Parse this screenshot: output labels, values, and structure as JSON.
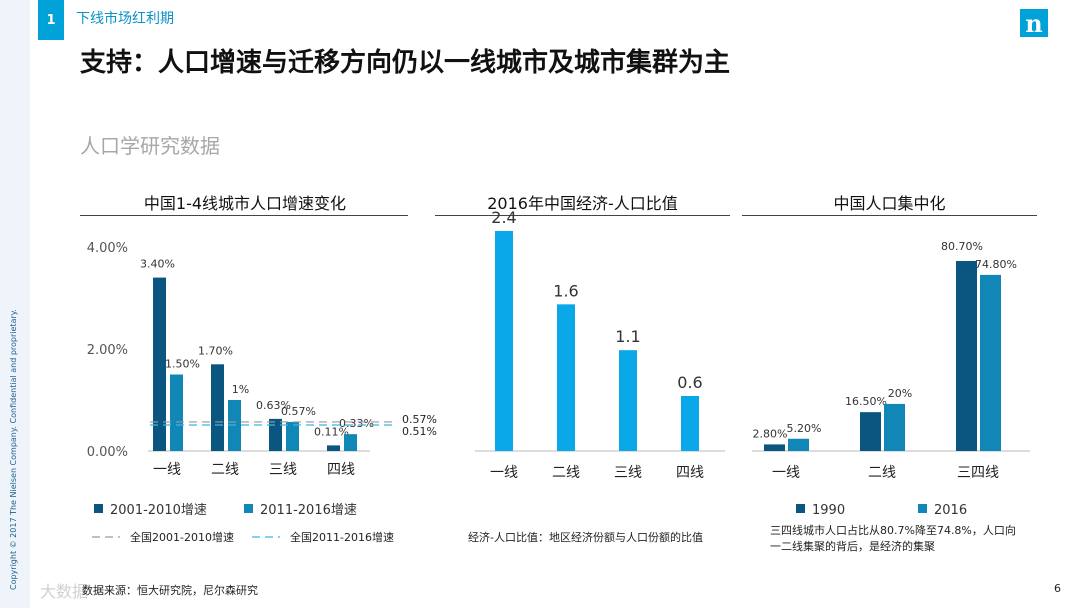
{
  "page": {
    "section_number": "1",
    "section_label": "下线市场红利期",
    "logo_letter": "n",
    "title": "支持：人口增速与迁移方向仍以一线城市及城市集群为主",
    "subtitle": "人口学研究数据",
    "copyright": "Copyright © 2017 The Nielsen Company. Confidential and proprietary.",
    "source": "数据来源：恒大研究院，尼尔森研究",
    "watermark": "大数据",
    "page_number": "6"
  },
  "colors": {
    "dark_blue": "#0b5680",
    "mid_blue": "#1187b8",
    "bright_blue": "#0aa8e8",
    "accent": "#00a2d8"
  },
  "chart_data": [
    {
      "type": "bar",
      "title": "中国1-4线城市人口增速变化",
      "categories": [
        "一线",
        "二线",
        "三线",
        "四线"
      ],
      "series": [
        {
          "name": "2001-2010增速",
          "values": [
            3.4,
            1.7,
            0.63,
            0.11
          ],
          "labels": [
            "3.40%",
            "1.70%",
            "0.63%",
            "0.11%"
          ],
          "color": "#0b5680"
        },
        {
          "name": "2011-2016增速",
          "values": [
            1.5,
            1.0,
            0.57,
            0.33
          ],
          "labels": [
            "1.50%",
            "1%",
            "0.57%",
            "0.33%"
          ],
          "color": "#1187b8"
        }
      ],
      "reference_lines": [
        {
          "name": "全国2001-2010增速",
          "value": 0.57,
          "label": "0.57%",
          "color": "#9a9a9a"
        },
        {
          "name": "全国2011-2016增速",
          "value": 0.51,
          "label": "0.51%",
          "color": "#3fb2e6"
        }
      ],
      "yticks": [
        "0.00%",
        "2.00%",
        "4.00%"
      ],
      "ytick_values": [
        0,
        2,
        4
      ],
      "ylim": [
        0,
        4
      ]
    },
    {
      "type": "bar",
      "title": "2016年中国经济-人口比值",
      "categories": [
        "一线",
        "二线",
        "三线",
        "四线"
      ],
      "values": [
        2.4,
        1.6,
        1.1,
        0.6
      ],
      "labels": [
        "2.4",
        "1.6",
        "1.1",
        "0.6"
      ],
      "ylim": [
        0,
        2.4
      ],
      "color": "#0aa8e8",
      "footnote": "经济-人口比值：地区经济份额与人口份额的比值"
    },
    {
      "type": "bar",
      "title": "中国人口集中化",
      "categories": [
        "一线",
        "二线",
        "三四线"
      ],
      "series": [
        {
          "name": "1990",
          "values": [
            2.8,
            16.5,
            80.7
          ],
          "labels": [
            "2.80%",
            "16.50%",
            "80.70%"
          ],
          "color": "#0b5680"
        },
        {
          "name": "2016",
          "values": [
            5.2,
            20.0,
            74.8
          ],
          "labels": [
            "5.20%",
            "20%",
            "74.80%"
          ],
          "color": "#1187b8"
        }
      ],
      "ylim": [
        0,
        80.7
      ],
      "footnote_line1": "三四线城市人口占比从80.7%降至74.8%，人口向",
      "footnote_line2": "一二线集聚的背后，是经济的集聚"
    }
  ]
}
